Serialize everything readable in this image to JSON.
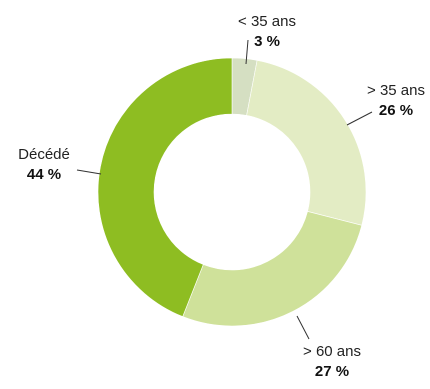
{
  "chart_data": {
    "type": "pie",
    "donut": true,
    "title": "",
    "slices": [
      {
        "label": "< 35 ans",
        "value": 3,
        "value_label": "3 %",
        "color": "#d5dfc2"
      },
      {
        "label": "> 35 ans",
        "value": 26,
        "value_label": "26 %",
        "color": "#e3ecc4"
      },
      {
        "label": "> 60 ans",
        "value": 27,
        "value_label": "27 %",
        "color": "#cfe19a"
      },
      {
        "label": "Décédé",
        "value": 44,
        "value_label": "44 %",
        "color": "#8ebd22"
      }
    ],
    "legend": "none"
  }
}
